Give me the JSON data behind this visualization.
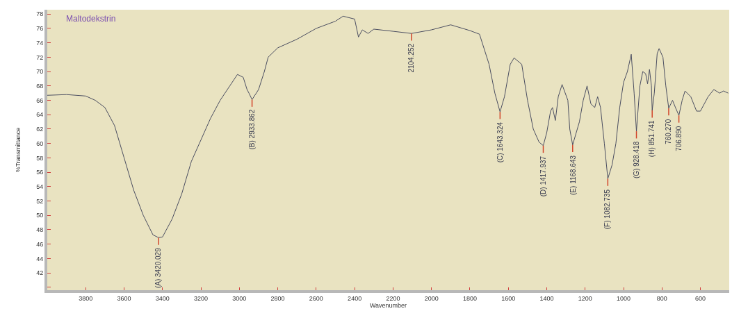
{
  "chart_data": {
    "type": "line",
    "xlabel": "Wavenumber",
    "ylabel": "%Transmittance",
    "xlim": [
      4000,
      450
    ],
    "ylim": [
      39.6,
      78.6
    ],
    "xticks": [
      3800,
      3600,
      3400,
      3200,
      3000,
      2800,
      2600,
      2400,
      2200,
      2000,
      1800,
      1600,
      1400,
      1200,
      1000,
      800,
      600
    ],
    "yticks": [
      {
        "value": 40,
        "label": null
      },
      42,
      44,
      46,
      48,
      50,
      52,
      54,
      56,
      58,
      60,
      62,
      64,
      66,
      68,
      70,
      72,
      74,
      76,
      78
    ],
    "grid": false,
    "legend": false,
    "marker": "none",
    "line_style": "solid",
    "series": [
      {
        "name": "Maltodekstrin",
        "color": "#4a4d60",
        "x": [
          4000,
          3900,
          3800,
          3750,
          3700,
          3650,
          3600,
          3550,
          3500,
          3450,
          3420,
          3400,
          3350,
          3300,
          3250,
          3200,
          3150,
          3100,
          3050,
          3010,
          2980,
          2960,
          2950,
          2934,
          2900,
          2870,
          2850,
          2800,
          2700,
          2600,
          2500,
          2460,
          2400,
          2380,
          2360,
          2330,
          2300,
          2200,
          2104,
          2000,
          1900,
          1800,
          1750,
          1700,
          1670,
          1643,
          1620,
          1590,
          1570,
          1530,
          1500,
          1470,
          1440,
          1418,
          1400,
          1380,
          1370,
          1355,
          1340,
          1320,
          1290,
          1280,
          1265,
          1230,
          1210,
          1190,
          1170,
          1150,
          1135,
          1120,
          1100,
          1082,
          1060,
          1040,
          1020,
          1000,
          980,
          960,
          945,
          933,
          915,
          900,
          885,
          875,
          865,
          855,
          851,
          840,
          825,
          815,
          795,
          780,
          765,
          745,
          730,
          712,
          695,
          680,
          650,
          620,
          600,
          580,
          560,
          530,
          500,
          480,
          455
        ],
        "values": [
          66.7,
          66.8,
          66.6,
          66.0,
          65.0,
          62.5,
          58.0,
          53.5,
          50.0,
          47.3,
          46.9,
          47.0,
          49.5,
          53.0,
          57.5,
          60.5,
          63.5,
          66.0,
          68.0,
          69.6,
          69.2,
          67.5,
          67.0,
          66.1,
          67.5,
          70.0,
          72.0,
          73.3,
          74.5,
          76.0,
          77.0,
          77.7,
          77.3,
          74.8,
          75.8,
          75.3,
          75.9,
          75.6,
          75.3,
          75.8,
          76.5,
          75.7,
          75.2,
          71.0,
          67.0,
          64.4,
          66.5,
          71.0,
          71.9,
          71.0,
          66.0,
          62.0,
          60.2,
          59.7,
          61.5,
          64.5,
          65.0,
          63.2,
          66.5,
          68.2,
          66.0,
          62.0,
          59.8,
          63.0,
          66.0,
          68.0,
          65.5,
          65.0,
          66.5,
          65.0,
          60.0,
          55.1,
          57.0,
          60.0,
          65.0,
          68.5,
          70.0,
          72.4,
          67.0,
          61.7,
          68.0,
          70.0,
          69.7,
          68.3,
          70.3,
          68.0,
          64.6,
          67.0,
          72.5,
          73.2,
          72.0,
          68.0,
          64.9,
          66.0,
          65.0,
          63.9,
          66.0,
          67.3,
          66.5,
          64.5,
          64.5,
          65.5,
          66.5,
          67.5,
          67.0,
          67.3,
          67.0
        ]
      }
    ],
    "annotations": [
      {
        "text": "(A) 3420.029",
        "x": 3420,
        "y": 46.9
      },
      {
        "text": "(B) 2933.862",
        "x": 2934,
        "y": 66.1
      },
      {
        "text": "2104.252",
        "x": 2104,
        "y": 75.3
      },
      {
        "text": "(C) 1643.324",
        "x": 1643,
        "y": 64.4
      },
      {
        "text": "(D) 1417.937",
        "x": 1418,
        "y": 59.7
      },
      {
        "text": "(E) 1168.643",
        "x": 1265,
        "y": 59.8
      },
      {
        "text": "(F) 1082.735",
        "x": 1082,
        "y": 55.1
      },
      {
        "text": "(G) 928.418",
        "x": 933,
        "y": 61.7
      },
      {
        "text": "(H) 851.741",
        "x": 851,
        "y": 64.6
      },
      {
        "text": "760.270",
        "x": 765,
        "y": 64.9
      },
      {
        "text": "706.890",
        "x": 712,
        "y": 63.9
      }
    ]
  }
}
